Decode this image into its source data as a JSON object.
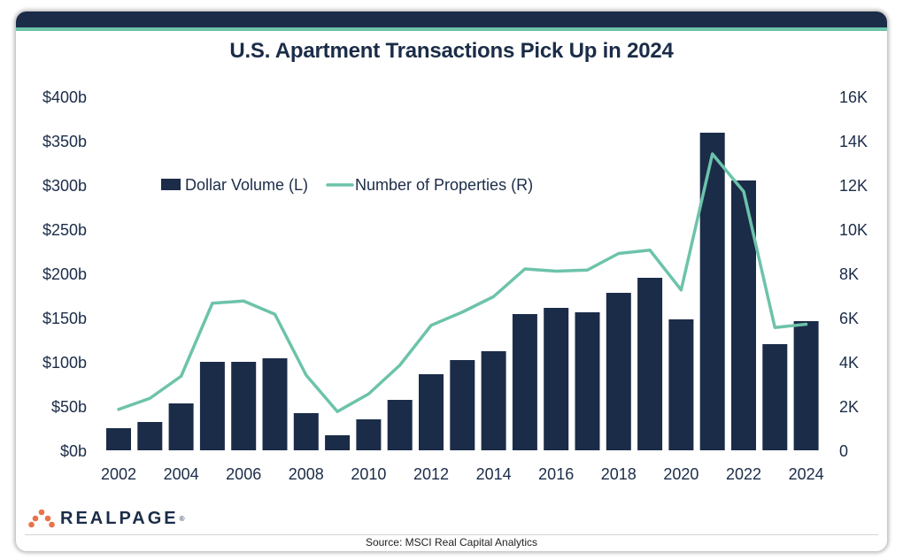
{
  "title": "U.S. Apartment Transactions Pick Up in 2024",
  "source": "Source: MSCI Real Capital Analytics",
  "logo": {
    "text": "REALPAGE",
    "trademark": "®"
  },
  "colors": {
    "header_bar": "#1b2c48",
    "accent_line": "#6cc3aa",
    "bars": "#1b2c48",
    "line": "#6cc3aa",
    "text": "#1b2c48",
    "logo_dot": "#e8734a"
  },
  "chart_data": {
    "type": "bar",
    "title": "U.S. Apartment Transactions Pick Up in 2024",
    "x": [
      2002,
      2003,
      2004,
      2005,
      2006,
      2007,
      2008,
      2009,
      2010,
      2011,
      2012,
      2013,
      2014,
      2015,
      2016,
      2017,
      2018,
      2019,
      2020,
      2021,
      2022,
      2023,
      2024
    ],
    "x_tick_labels": [
      "2002",
      "2004",
      "2006",
      "2008",
      "2010",
      "2012",
      "2014",
      "2016",
      "2018",
      "2020",
      "2022",
      "2024"
    ],
    "series": [
      {
        "name": "Dollar Volume (L)",
        "type": "bar",
        "axis": "left",
        "color": "#1b2c48",
        "values": [
          25,
          32,
          53,
          100,
          100,
          104,
          42,
          17,
          35,
          57,
          86,
          102,
          112,
          154,
          161,
          156,
          178,
          195,
          148,
          359,
          305,
          120,
          146
        ]
      },
      {
        "name": "Number of Properties (R)",
        "type": "line",
        "axis": "right",
        "color": "#6cc3aa",
        "values": [
          1850,
          2350,
          3350,
          6650,
          6750,
          6150,
          3400,
          1750,
          2550,
          3850,
          5650,
          6250,
          6950,
          8200,
          8100,
          8150,
          8900,
          9050,
          7250,
          13400,
          11700,
          5550,
          5700
        ]
      }
    ],
    "y_left": {
      "min": 0,
      "max": 400,
      "tick_values": [
        0,
        50,
        100,
        150,
        200,
        250,
        300,
        350,
        400
      ],
      "tick_labels": [
        "$0b",
        "$50b",
        "$100b",
        "$150b",
        "$200b",
        "$250b",
        "$300b",
        "$350b",
        "$400b"
      ]
    },
    "y_right": {
      "min": 0,
      "max": 16000,
      "tick_values": [
        0,
        2000,
        4000,
        6000,
        8000,
        10000,
        12000,
        14000,
        16000
      ],
      "tick_labels": [
        "0",
        "2K",
        "4K",
        "6K",
        "8K",
        "10K",
        "12K",
        "14K",
        "16K"
      ]
    },
    "grid": false,
    "legend": "top-left"
  }
}
